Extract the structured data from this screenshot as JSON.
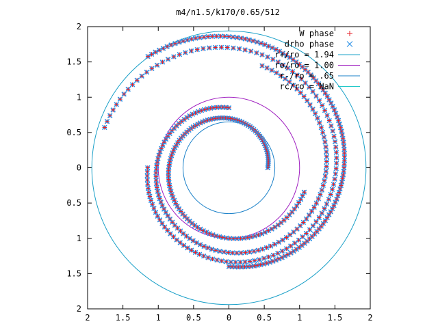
{
  "chart_data": {
    "type": "scatter",
    "title": "m4/n1.5/k170/0.65/512",
    "xlabel": "",
    "ylabel": "",
    "xlim": [
      -2,
      2
    ],
    "ylim": [
      -2,
      2
    ],
    "x_tick_labels": [
      "2",
      "1.5",
      "1",
      "0.5",
      "0",
      "0.5",
      "1",
      "1.5",
      "2"
    ],
    "y_tick_labels": [
      "2",
      "1.5",
      "1",
      "0.5",
      "0",
      "0.5",
      "1",
      "1.5",
      "2"
    ],
    "grid": false,
    "legend_position": "top-right",
    "legend": [
      {
        "label": "W phase",
        "marker": "+",
        "color": "#e6202a"
      },
      {
        "label": "drho phase",
        "marker": "x",
        "color": "#2a8fe6"
      },
      {
        "label": "r+/ro = 1.94",
        "marker": "line",
        "color": "#1aa0c8"
      },
      {
        "label": "ro/ro = 1.00",
        "marker": "line",
        "color": "#a020c0"
      },
      {
        "label": "r-/ro = .65",
        "marker": "line",
        "color": "#1a80c8"
      },
      {
        "label": "rc/ro = NaN",
        "marker": "line",
        "color": "#20c8c8"
      }
    ],
    "circles": [
      {
        "name": "r+/ro = 1.94",
        "radius": 1.94,
        "color": "#1aa0c8"
      },
      {
        "name": "ro/ro = 1.00",
        "radius": 1.0,
        "color": "#a020c0"
      },
      {
        "name": "r-/ro = .65",
        "radius": 0.65,
        "color": "#1a80c8"
      }
    ],
    "spiral_arms": [
      {
        "r_start": 0.55,
        "r_end": 1.12,
        "angle_start_deg": 0,
        "turns": 0.95
      },
      {
        "r_start": 0.85,
        "r_end": 1.52,
        "angle_start_deg": 90,
        "turns": 0.95
      },
      {
        "r_start": 1.15,
        "r_end": 1.85,
        "angle_start_deg": 180,
        "turns": 0.95
      },
      {
        "r_start": 1.4,
        "r_end": 1.95,
        "angle_start_deg": 270,
        "turns": 0.6
      }
    ],
    "series": [
      {
        "name": "W phase",
        "marker": "+",
        "color": "#e6202a"
      },
      {
        "name": "drho phase",
        "marker": "x",
        "color": "#2a8fe6"
      }
    ]
  }
}
